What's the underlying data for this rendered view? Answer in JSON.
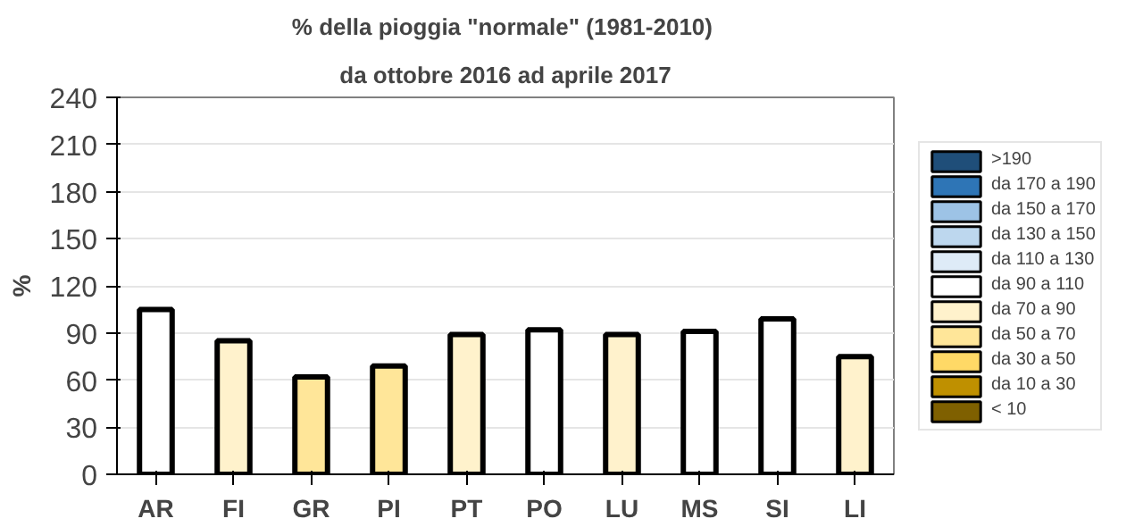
{
  "chart_data": {
    "type": "bar",
    "title": "%  della pioggia \"normale\" (1981-2010)",
    "subtitle": "da ottobre 2016 ad aprile 2017",
    "ylabel": "%",
    "categories": [
      "AR",
      "FI",
      "GR",
      "PI",
      "PT",
      "PO",
      "LU",
      "MS",
      "SI",
      "LI"
    ],
    "ylim": [
      0,
      240
    ],
    "yticks": [
      0,
      30,
      60,
      90,
      120,
      150,
      180,
      210,
      240
    ],
    "grid": "y",
    "legend": "right",
    "series": [
      {
        "name": ">190",
        "color": "#1f4e79",
        "values": [
          null,
          null,
          null,
          null,
          null,
          null,
          null,
          null,
          null,
          null
        ]
      },
      {
        "name": "da 170 a 190",
        "color": "#2e75b6",
        "values": [
          null,
          null,
          null,
          null,
          null,
          null,
          null,
          null,
          null,
          null
        ]
      },
      {
        "name": "da 150 a 170",
        "color": "#9dc3e6",
        "values": [
          null,
          null,
          null,
          null,
          null,
          null,
          null,
          null,
          null,
          null
        ]
      },
      {
        "name": "da 130 a 150",
        "color": "#bdd7ee",
        "values": [
          null,
          null,
          null,
          null,
          null,
          null,
          null,
          null,
          null,
          null
        ]
      },
      {
        "name": "da 110 a 130",
        "color": "#deebf7",
        "values": [
          null,
          null,
          null,
          null,
          null,
          null,
          null,
          null,
          null,
          null
        ]
      },
      {
        "name": "da 90 a 110",
        "color": "#ffffff",
        "values": [
          105,
          null,
          null,
          null,
          null,
          92,
          null,
          91,
          99,
          null
        ]
      },
      {
        "name": "da 70 a 90",
        "color": "#fff2cc",
        "values": [
          null,
          85,
          null,
          null,
          89,
          null,
          89,
          null,
          null,
          75
        ]
      },
      {
        "name": "da 50 a 70",
        "color": "#ffe699",
        "values": [
          null,
          null,
          62,
          69,
          null,
          null,
          null,
          null,
          null,
          null
        ]
      },
      {
        "name": "da 30 a 50",
        "color": "#ffd966",
        "values": [
          null,
          null,
          null,
          null,
          null,
          null,
          null,
          null,
          null,
          null
        ]
      },
      {
        "name": "da 10 a 30",
        "color": "#bf9000",
        "values": [
          null,
          null,
          null,
          null,
          null,
          null,
          null,
          null,
          null,
          null
        ]
      },
      {
        "name": "< 10",
        "color": "#7f6000",
        "values": [
          null,
          null,
          null,
          null,
          null,
          null,
          null,
          null,
          null,
          null
        ]
      }
    ]
  }
}
